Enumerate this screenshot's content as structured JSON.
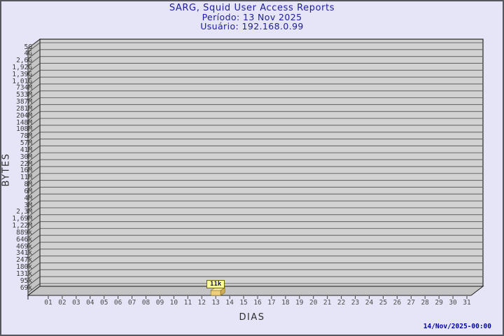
{
  "header": {
    "title": "SARG, Squid User Access Reports",
    "period": "Período: 13 Nov 2025",
    "user": "Usuário: 192.168.0.99"
  },
  "footer": {
    "generated": "14/Nov/2025-00:00"
  },
  "chart_data": {
    "type": "bar",
    "title": "SARG, Squid User Access Reports",
    "subtitle": [
      "Período: 13 Nov 2025",
      "Usuário: 192.168.0.99"
    ],
    "xlabel": "DIAS",
    "ylabel": "BYTES",
    "y_scale": "log",
    "grid": "horizontal",
    "legend": "none",
    "x_tick_labels": [
      "01",
      "02",
      "03",
      "04",
      "05",
      "06",
      "07",
      "08",
      "09",
      "10",
      "11",
      "12",
      "13",
      "14",
      "15",
      "16",
      "17",
      "18",
      "19",
      "20",
      "21",
      "22",
      "23",
      "24",
      "25",
      "26",
      "27",
      "28",
      "29",
      "30",
      "31"
    ],
    "y_tick_labels": [
      "5G",
      "4G",
      "2,6G",
      "1,92G",
      "1,39G",
      "1,01G",
      "734M",
      "533M",
      "387M",
      "281M",
      "204M",
      "148M",
      "108M",
      "78M",
      "57M",
      "41M",
      "30M",
      "22M",
      "16M",
      "11M",
      "8M",
      "6M",
      "4M",
      "3M",
      "2,3M",
      "1,69M",
      "1,22M",
      "889k",
      "646k",
      "469k",
      "341k",
      "247k",
      "180k",
      "131k",
      "95k",
      "69k"
    ],
    "categories": [
      "01",
      "02",
      "03",
      "04",
      "05",
      "06",
      "07",
      "08",
      "09",
      "10",
      "11",
      "12",
      "13",
      "14",
      "15",
      "16",
      "17",
      "18",
      "19",
      "20",
      "21",
      "22",
      "23",
      "24",
      "25",
      "26",
      "27",
      "28",
      "29",
      "30",
      "31"
    ],
    "values": [
      0,
      0,
      0,
      0,
      0,
      0,
      0,
      0,
      0,
      0,
      0,
      0,
      11000,
      0,
      0,
      0,
      0,
      0,
      0,
      0,
      0,
      0,
      0,
      0,
      0,
      0,
      0,
      0,
      0,
      0,
      0
    ],
    "bars": [
      {
        "day": "13",
        "value_label": "11k",
        "value_bytes": 11000
      }
    ]
  },
  "colors": {
    "background": "#E5E5F7",
    "title_text": "#1C1C9C",
    "plot_face": "#D2D2D2",
    "wall_3d": "#C4C4C4",
    "grid_line": "#6A6A6A",
    "frame_line": "#222222",
    "axis_text": "#3A3A3A",
    "bar_front": "#EDCF7E",
    "bar_top": "#F6E5A6",
    "bar_side": "#CFAC55",
    "bar_label_bg": "#FFFF9E",
    "bar_label_border": "#6B6B00",
    "timestamp_text": "#0000A8"
  }
}
